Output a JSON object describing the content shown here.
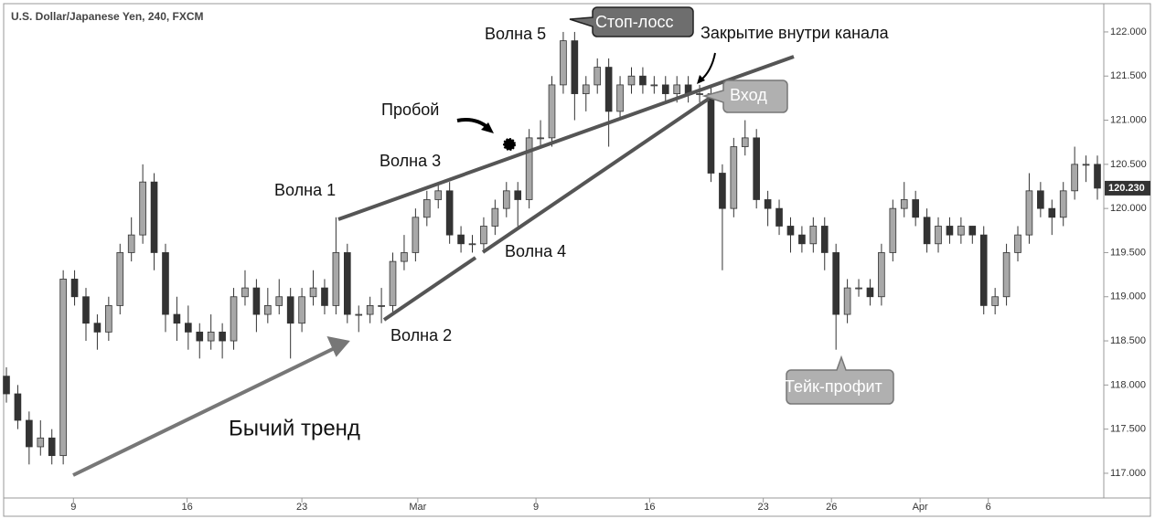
{
  "chart_data": {
    "type": "candlestick",
    "title": "U.S. Dollar/Japanese Yen, 240, FXCM",
    "up_color": "#a8a8a8",
    "down_color": "#333333",
    "xlim": [
      0,
      96
    ],
    "xticks": [
      {
        "value": 5.9,
        "label": "9"
      },
      {
        "value": 15.9,
        "label": "16"
      },
      {
        "value": 26,
        "label": "23"
      },
      {
        "value": 36.2,
        "label": "Mar"
      },
      {
        "value": 46.6,
        "label": "9"
      },
      {
        "value": 56.6,
        "label": "16"
      },
      {
        "value": 66.6,
        "label": "23"
      },
      {
        "value": 72.6,
        "label": "26"
      },
      {
        "value": 80.4,
        "label": "Apr"
      },
      {
        "value": 86.4,
        "label": "6"
      }
    ],
    "ylim": [
      116.72,
      122.31
    ],
    "yticks": [
      {
        "value": 117,
        "label": "117.000"
      },
      {
        "value": 117.5,
        "label": "117.500"
      },
      {
        "value": 118,
        "label": "118.000"
      },
      {
        "value": 118.5,
        "label": "118.500"
      },
      {
        "value": 119,
        "label": "119.000"
      },
      {
        "value": 119.5,
        "label": "119.500"
      },
      {
        "value": 120,
        "label": "120.000"
      },
      {
        "value": 120.5,
        "label": "120.500"
      },
      {
        "value": 121,
        "label": "121.000"
      },
      {
        "value": 121.5,
        "label": "121.500"
      },
      {
        "value": 122,
        "label": "122.000"
      }
    ],
    "last_price": {
      "value": 120.23,
      "label": "120.230"
    },
    "open": [
      118.1,
      117.9,
      117.6,
      117.3,
      117.4,
      117.2,
      119.2,
      119.0,
      118.7,
      118.6,
      118.9,
      119.5,
      119.7,
      120.3,
      119.5,
      118.8,
      118.7,
      118.6,
      118.5,
      118.6,
      118.5,
      119.0,
      119.1,
      118.8,
      118.9,
      119.0,
      118.7,
      119.0,
      119.1,
      118.9,
      119.5,
      118.8,
      118.8,
      118.9,
      118.9,
      119.4,
      119.5,
      119.9,
      120.1,
      120.2,
      119.7,
      119.6,
      119.6,
      119.8,
      120.0,
      120.2,
      120.1,
      120.8,
      120.8,
      121.4,
      121.9,
      121.3,
      121.4,
      121.6,
      121.1,
      121.4,
      121.5,
      121.4,
      121.4,
      121.3,
      121.4,
      121.3,
      121.3,
      120.4,
      120.0,
      120.7,
      120.8,
      120.1,
      120.0,
      119.8,
      119.7,
      119.6,
      119.8,
      119.5,
      118.8,
      119.1,
      119.1,
      119.0,
      119.5,
      120.0,
      120.1,
      119.9,
      119.6,
      119.8,
      119.7,
      119.8,
      119.7,
      118.9,
      119.0,
      119.5,
      119.7,
      120.2,
      120.0,
      119.9,
      120.2,
      120.5,
      120.5
    ],
    "high": [
      118.2,
      118.0,
      117.7,
      117.6,
      117.5,
      119.3,
      119.3,
      119.1,
      118.8,
      119.0,
      119.6,
      119.9,
      120.5,
      120.4,
      119.6,
      119.0,
      118.9,
      118.7,
      118.8,
      118.7,
      119.1,
      119.3,
      119.2,
      119.1,
      119.2,
      119.1,
      119.1,
      119.3,
      119.2,
      119.9,
      119.6,
      118.9,
      119.0,
      119.1,
      119.5,
      119.7,
      120.0,
      120.2,
      120.3,
      120.3,
      119.8,
      119.7,
      119.9,
      120.1,
      120.3,
      120.3,
      120.9,
      121.0,
      121.5,
      122.0,
      122.0,
      121.5,
      121.7,
      121.7,
      121.5,
      121.6,
      121.6,
      121.5,
      121.5,
      121.5,
      121.5,
      121.4,
      121.4,
      120.5,
      120.8,
      121.0,
      120.9,
      120.2,
      120.1,
      119.9,
      119.8,
      119.9,
      119.9,
      119.6,
      119.2,
      119.2,
      119.2,
      119.6,
      120.1,
      120.3,
      120.2,
      120.0,
      119.9,
      119.9,
      119.9,
      119.8,
      119.8,
      119.1,
      119.6,
      119.8,
      120.4,
      120.3,
      120.1,
      120.3,
      120.7,
      120.6,
      120.6
    ],
    "low": [
      117.8,
      117.5,
      117.1,
      117.2,
      117.1,
      117.1,
      118.9,
      118.5,
      118.4,
      118.5,
      118.8,
      119.4,
      119.6,
      119.3,
      118.6,
      118.5,
      118.4,
      118.3,
      118.4,
      118.3,
      118.4,
      118.9,
      118.6,
      118.7,
      118.8,
      118.3,
      118.6,
      118.9,
      118.8,
      118.8,
      118.7,
      118.6,
      118.7,
      118.7,
      118.8,
      119.3,
      119.4,
      119.8,
      120.0,
      119.6,
      119.5,
      119.5,
      119.5,
      119.7,
      119.9,
      119.8,
      120.0,
      120.7,
      120.7,
      121.3,
      121.0,
      121.1,
      121.3,
      120.7,
      121.0,
      121.3,
      121.3,
      121.3,
      121.2,
      121.2,
      121.2,
      121.2,
      120.3,
      119.3,
      119.9,
      120.6,
      120.0,
      119.8,
      119.7,
      119.5,
      119.5,
      119.5,
      119.3,
      118.4,
      118.7,
      119.0,
      118.9,
      118.9,
      119.4,
      119.9,
      119.8,
      119.5,
      119.5,
      119.6,
      119.6,
      119.6,
      118.8,
      118.8,
      118.9,
      119.4,
      119.6,
      119.9,
      119.7,
      119.8,
      120.1,
      120.3,
      120.1
    ],
    "close": [
      117.9,
      117.6,
      117.3,
      117.4,
      117.2,
      119.2,
      119.0,
      118.7,
      118.6,
      118.9,
      119.5,
      119.7,
      120.3,
      119.5,
      118.8,
      118.7,
      118.6,
      118.5,
      118.6,
      118.5,
      119.0,
      119.1,
      118.8,
      118.9,
      119.0,
      118.7,
      119.0,
      119.1,
      118.9,
      119.5,
      118.8,
      118.8,
      118.9,
      118.9,
      119.4,
      119.5,
      119.9,
      120.1,
      120.2,
      119.7,
      119.6,
      119.6,
      119.8,
      120.0,
      120.2,
      120.1,
      120.8,
      120.8,
      121.4,
      121.9,
      121.3,
      121.4,
      121.6,
      121.1,
      121.4,
      121.5,
      121.4,
      121.4,
      121.3,
      121.4,
      121.3,
      121.3,
      120.4,
      120.0,
      120.7,
      120.8,
      120.1,
      120.0,
      119.8,
      119.7,
      119.6,
      119.8,
      119.5,
      118.8,
      119.1,
      119.1,
      119.0,
      119.5,
      120.0,
      120.1,
      119.9,
      119.6,
      119.8,
      119.7,
      119.8,
      119.7,
      118.9,
      119.0,
      119.5,
      119.7,
      120.2,
      120.0,
      119.9,
      120.2,
      120.5,
      120.5,
      120.23
    ],
    "annotations": {
      "wave1": "Волна 1",
      "wave2": "Волна 2",
      "wave3": "Волна 3",
      "wave4": "Волна 4",
      "wave5": "Волна 5",
      "breakout": "Пробой",
      "stop_loss": "Стоп-лосс",
      "close_in_channel": "Закрытие внутри канала",
      "entry": "Вход",
      "take_profit": "Тейк-профит",
      "trend": "Бычий тренд"
    }
  }
}
